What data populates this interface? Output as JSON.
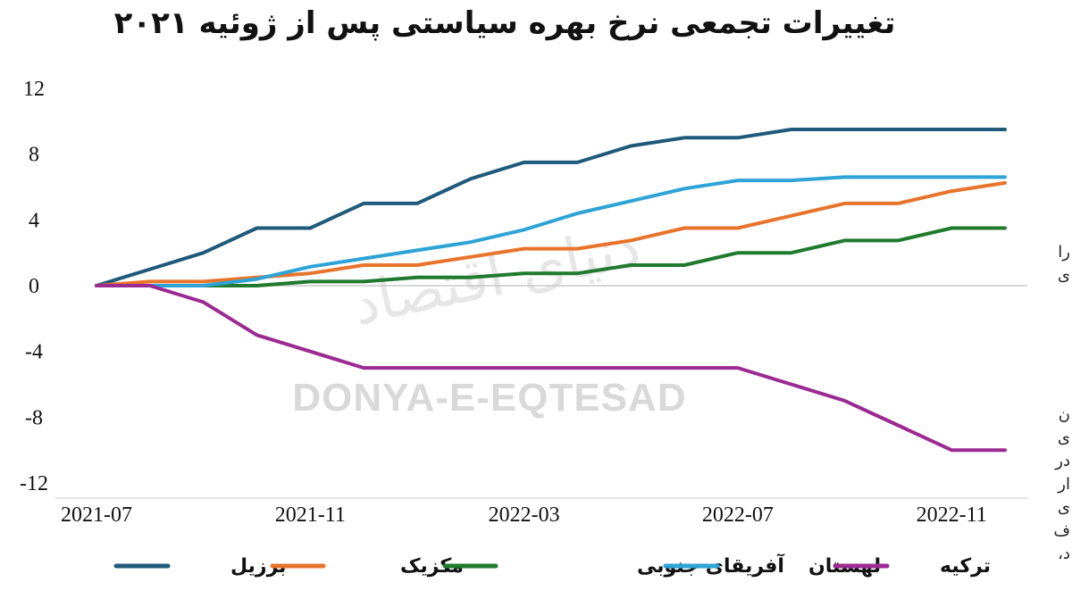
{
  "chart_data": {
    "type": "line",
    "title": "تغییرات تجمعی نرخ بهره سیاستی پس از ژوئیه ۲۰۲۱",
    "xlabel": "",
    "ylabel": "",
    "x_ticks": [
      "2021-07",
      "2021-11",
      "2022-03",
      "2022-07",
      "2022-11"
    ],
    "y_ticks": [
      "12",
      "8",
      "4",
      "0",
      "-4",
      "-8",
      "-12"
    ],
    "ylim": [
      -12,
      12
    ],
    "x": [
      "2021-07",
      "2021-08",
      "2021-09",
      "2021-10",
      "2021-11",
      "2021-12",
      "2022-01",
      "2022-02",
      "2022-03",
      "2022-04",
      "2022-05",
      "2022-06",
      "2022-07",
      "2022-08",
      "2022-09",
      "2022-10",
      "2022-11",
      "2022-12"
    ],
    "grid": false,
    "legend_position": "bottom",
    "series": [
      {
        "name": "برزیل",
        "color": "#1f5a7a",
        "values": [
          0,
          1.0,
          2.0,
          3.5,
          3.5,
          5.0,
          5.0,
          6.5,
          7.5,
          7.5,
          8.5,
          9.0,
          9.0,
          9.5,
          9.5,
          9.5,
          9.5,
          9.5
        ]
      },
      {
        "name": "مکزیک",
        "color": "#e8742b",
        "values": [
          0,
          0.25,
          0.25,
          0.5,
          0.75,
          1.25,
          1.25,
          1.75,
          2.25,
          2.25,
          2.75,
          3.5,
          3.5,
          4.25,
          5.0,
          5.0,
          5.75,
          6.25
        ]
      },
      {
        "name": "آفریقای جنوبی",
        "color": "#1f7a2e",
        "values": [
          0,
          0,
          0,
          0,
          0.25,
          0.25,
          0.5,
          0.5,
          0.75,
          0.75,
          1.25,
          1.25,
          2.0,
          2.0,
          2.75,
          2.75,
          3.5,
          3.5
        ]
      },
      {
        "name": "لهستان",
        "color": "#2ea3d6",
        "values": [
          0,
          0,
          0,
          0.4,
          1.15,
          1.65,
          2.15,
          2.65,
          3.4,
          4.4,
          5.15,
          5.9,
          6.4,
          6.4,
          6.6,
          6.6,
          6.6,
          6.6
        ]
      },
      {
        "name": "ترکیه",
        "color": "#9b2a92",
        "values": [
          0,
          0,
          -1.0,
          -3.0,
          -4.0,
          -5.0,
          -5.0,
          -5.0,
          -5.0,
          -5.0,
          -5.0,
          -5.0,
          -5.0,
          -6.0,
          -7.0,
          -8.5,
          -10.0,
          -10.0
        ]
      }
    ],
    "watermark": {
      "latin": "DONYA-E-EQTESAD",
      "persian": "دنیای اقتصاد"
    }
  },
  "side_text": [
    "را",
    "ی",
    "ن",
    "ی",
    "در",
    "ار",
    "ی",
    "ف",
    "د،"
  ]
}
